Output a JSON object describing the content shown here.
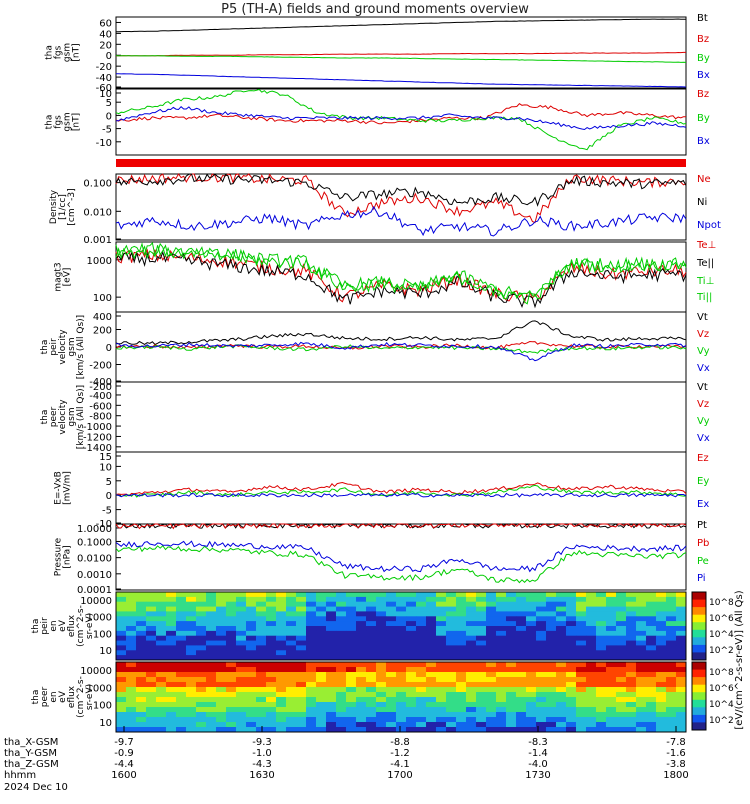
{
  "title": "P5 (TH-A) fields and ground moments overview",
  "footer": {
    "rows": [
      {
        "label": "tha_X-GSM",
        "values": [
          "-9.7",
          "-9.3",
          "-8.8",
          "-8.3",
          "-7.8"
        ]
      },
      {
        "label": "tha_Y-GSM",
        "values": [
          "-0.9",
          "-1.0",
          "-1.2",
          "-1.4",
          "-1.6"
        ]
      },
      {
        "label": "tha_Z-GSM",
        "values": [
          "-4.4",
          "-4.3",
          "-4.1",
          "-4.0",
          "-3.8"
        ]
      },
      {
        "label": "hhmm",
        "values": [
          "1600",
          "1630",
          "1700",
          "1730",
          "1800"
        ]
      }
    ],
    "date": "2024 Dec 10"
  },
  "colorbar": {
    "label": "[eV/(cm^2-s-sr-eV)] (All Qs)",
    "ticks_top": [
      "10^8",
      "10^6",
      "10^4",
      "10^2"
    ],
    "ticks_bottom": [
      "10^8",
      "10^6",
      "10^4",
      "10^2"
    ]
  },
  "chart_data": [
    {
      "id": "p1",
      "type": "line",
      "ylabel": [
        "tha",
        "fgs",
        "gsm",
        "[nT]"
      ],
      "ylim": [
        -60,
        70
      ],
      "yticks": [
        "60",
        "40",
        "20",
        "0",
        "-20",
        "-40",
        "-60"
      ],
      "series": [
        {
          "name": "Bt",
          "color": "#000000",
          "values": [
            43,
            44,
            46,
            48,
            50,
            52,
            54,
            56,
            58,
            60,
            62,
            63,
            64,
            65,
            66,
            66
          ]
        },
        {
          "name": "Bz",
          "color": "#dd0000",
          "values": [
            -1,
            -1,
            0,
            0,
            1,
            1,
            2,
            2,
            2,
            3,
            3,
            3,
            4,
            4,
            4,
            5
          ]
        },
        {
          "name": "By",
          "color": "#00cc00",
          "values": [
            -1,
            -1,
            -2,
            -2,
            -3,
            -4,
            -5,
            -5,
            -6,
            -7,
            -8,
            -9,
            -10,
            -11,
            -12,
            -13
          ]
        },
        {
          "name": "Bx",
          "color": "#0000dd",
          "values": [
            -34,
            -35,
            -37,
            -39,
            -41,
            -43,
            -45,
            -47,
            -49,
            -51,
            -53,
            -54,
            -55,
            -56,
            -57,
            -58
          ]
        }
      ]
    },
    {
      "id": "p2",
      "type": "line",
      "ylabel": [
        "tha",
        "fgs",
        "gsm",
        "[nT]"
      ],
      "ylim": [
        -15,
        10
      ],
      "yticks": [
        "10",
        "5",
        "0",
        "-5",
        "-10"
      ],
      "series": [
        {
          "name": "Bz",
          "color": "#dd0000",
          "values": [
            -2,
            -1,
            -1,
            0,
            -1,
            -2,
            -2,
            -2,
            -3,
            -2,
            -1,
            -1,
            4,
            3,
            0,
            1,
            0,
            -1
          ]
        },
        {
          "name": "By",
          "color": "#00cc00",
          "values": [
            1,
            3,
            6,
            7,
            10,
            8,
            1,
            -1,
            -1,
            -2,
            -2,
            -1,
            -1,
            -8,
            -13,
            -4,
            -1,
            -3
          ]
        },
        {
          "name": "Bx",
          "color": "#0000dd",
          "values": [
            -2,
            1,
            3,
            1,
            0,
            -1,
            -1,
            -1,
            -1,
            -1,
            0,
            -1,
            -1,
            -3,
            -5,
            -4,
            -3,
            -4
          ]
        }
      ]
    },
    {
      "id": "p3",
      "type": "line",
      "ylabel": [
        "Density",
        "[1/cc]",
        "[cm^-3]"
      ],
      "ylog": true,
      "ylim": [
        0.001,
        0.2
      ],
      "yticks": [
        "0.100",
        "0.010",
        "0.001"
      ],
      "series": [
        {
          "name": "Ne",
          "color": "#dd0000",
          "values": [
            0.12,
            0.14,
            0.16,
            0.15,
            0.13,
            0.12,
            0.008,
            0.02,
            0.03,
            0.01,
            0.02,
            0.005,
            0.15,
            0.12,
            0.1,
            0.12
          ]
        },
        {
          "name": "Ni",
          "color": "#000000",
          "values": [
            0.1,
            0.12,
            0.14,
            0.13,
            0.12,
            0.1,
            0.03,
            0.04,
            0.05,
            0.02,
            0.03,
            0.02,
            0.12,
            0.1,
            0.09,
            0.1
          ]
        },
        {
          "name": "Npot",
          "color": "#0000dd",
          "values": [
            0.003,
            0.005,
            0.003,
            0.004,
            0.006,
            0.003,
            0.008,
            0.01,
            0.002,
            0.003,
            0.002,
            0.005,
            0.003,
            0.004,
            0.006,
            0.006
          ]
        }
      ]
    },
    {
      "id": "p4",
      "type": "line",
      "ylabel": [
        "magt3",
        "[eV]"
      ],
      "ylog": true,
      "ylim": [
        40,
        3000
      ],
      "yticks": [
        "1000",
        "100"
      ],
      "series": [
        {
          "name": "Te⊥",
          "color": "#dd0000",
          "values": [
            1200,
            1300,
            1100,
            900,
            600,
            500,
            100,
            200,
            150,
            300,
            120,
            90,
            600,
            400,
            500,
            500
          ]
        },
        {
          "name": "Te||",
          "color": "#000000",
          "values": [
            1000,
            1100,
            900,
            700,
            500,
            400,
            80,
            150,
            120,
            250,
            100,
            70,
            500,
            350,
            400,
            400
          ]
        },
        {
          "name": "Ti⊥",
          "color": "#00cc00",
          "values": [
            1800,
            1900,
            1600,
            1400,
            1000,
            900,
            200,
            250,
            180,
            400,
            150,
            100,
            900,
            700,
            800,
            800
          ]
        },
        {
          "name": "Ti||",
          "color": "#00cc00",
          "values": [
            1600,
            1700,
            1500,
            1300,
            900,
            800,
            180,
            230,
            160,
            350,
            140,
            90,
            800,
            650,
            750,
            750
          ]
        }
      ]
    },
    {
      "id": "p5",
      "type": "line",
      "ylabel": [
        "tha",
        "peir",
        "velocity",
        "gsm",
        "[km/s (All Qs)]"
      ],
      "ylim": [
        -400,
        400
      ],
      "yticks": [
        "400",
        "200",
        "0",
        "-200",
        "-400"
      ],
      "series": [
        {
          "name": "Vt",
          "color": "#000000",
          "values": [
            50,
            40,
            60,
            80,
            120,
            150,
            100,
            90,
            110,
            80,
            100,
            300,
            120,
            80,
            100,
            90
          ]
        },
        {
          "name": "Vz",
          "color": "#dd0000",
          "values": [
            0,
            10,
            -10,
            20,
            0,
            10,
            -20,
            10,
            0,
            20,
            -10,
            50,
            10,
            0,
            10,
            0
          ]
        },
        {
          "name": "Vy",
          "color": "#00cc00",
          "values": [
            -10,
            0,
            -20,
            10,
            -10,
            -30,
            10,
            -20,
            0,
            -10,
            -20,
            -60,
            -10,
            -20,
            0,
            -10
          ]
        },
        {
          "name": "Vx",
          "color": "#0000dd",
          "values": [
            20,
            10,
            30,
            10,
            20,
            40,
            -10,
            30,
            20,
            10,
            0,
            -150,
            20,
            10,
            30,
            20
          ]
        }
      ]
    },
    {
      "id": "p6",
      "type": "line",
      "ylabel": [
        "tha",
        "peer",
        "velocity",
        "gsm",
        "[km/s (All Qs)]"
      ],
      "ylim": [
        -1500,
        -150
      ],
      "yticks": [
        "-200",
        "-400",
        "-600",
        "-800",
        "-1000",
        "-1200",
        "-1400"
      ],
      "series": [
        {
          "name": "Vt",
          "color": "#000000",
          "values": []
        },
        {
          "name": "Vz",
          "color": "#dd0000",
          "values": []
        },
        {
          "name": "Vy",
          "color": "#00cc00",
          "values": []
        },
        {
          "name": "Vx",
          "color": "#0000dd",
          "values": []
        }
      ]
    },
    {
      "id": "p7",
      "type": "line",
      "ylabel": [
        "E=-VxB",
        "[mV/m]"
      ],
      "ylim": [
        -10,
        15
      ],
      "yticks": [
        "15",
        "10",
        "5",
        "0",
        "-5",
        "-10"
      ],
      "series": [
        {
          "name": "Ez",
          "color": "#dd0000",
          "values": [
            0,
            1,
            2,
            1,
            3,
            2,
            4,
            1,
            2,
            1,
            2,
            4,
            2,
            3,
            2,
            1
          ]
        },
        {
          "name": "Ey",
          "color": "#00cc00",
          "values": [
            0,
            0,
            1,
            0,
            1,
            1,
            2,
            0,
            1,
            0,
            1,
            3,
            1,
            1,
            1,
            0
          ]
        },
        {
          "name": "Ex",
          "color": "#0000dd",
          "values": [
            0,
            0,
            0,
            0,
            0,
            0,
            0,
            0,
            0,
            0,
            0,
            0,
            0,
            0,
            0,
            0
          ]
        }
      ]
    },
    {
      "id": "p8",
      "type": "line",
      "ylabel": [
        "Pressure",
        "[nPa]"
      ],
      "ylog": true,
      "ylim": [
        0.0001,
        1.2
      ],
      "yticks": [
        "1.0000",
        "0.1000",
        "0.0100",
        "0.0010",
        "0.0001"
      ],
      "series": [
        {
          "name": "Pt",
          "color": "#000000",
          "values": [
            1,
            1,
            1,
            1,
            1,
            1,
            1,
            1,
            1,
            1,
            1,
            1,
            1,
            1,
            1,
            1
          ]
        },
        {
          "name": "Pb",
          "color": "#dd0000",
          "values": [
            0.9,
            0.9,
            0.95,
            1,
            1,
            1,
            1,
            1,
            1.05,
            1.05,
            1.1,
            1.1,
            1.1,
            1.15,
            1.15,
            1.2
          ]
        },
        {
          "name": "Pe",
          "color": "#00cc00",
          "values": [
            0.03,
            0.04,
            0.035,
            0.03,
            0.02,
            0.015,
            0.0008,
            0.0006,
            0.0006,
            0.002,
            0.0004,
            0.0004,
            0.02,
            0.015,
            0.012,
            0.015
          ]
        },
        {
          "name": "Pi",
          "color": "#0000dd",
          "values": [
            0.06,
            0.08,
            0.07,
            0.06,
            0.05,
            0.04,
            0.003,
            0.002,
            0.002,
            0.008,
            0.002,
            0.002,
            0.05,
            0.04,
            0.035,
            0.04
          ]
        }
      ]
    },
    {
      "id": "p9",
      "type": "heatmap",
      "ylabel": [
        "tha",
        "peir",
        "en",
        "eV",
        "eflux",
        "(cm^2-s-",
        "sr-eV)"
      ],
      "yticks": [
        "10000",
        "1000",
        "100",
        "10"
      ]
    },
    {
      "id": "p10",
      "type": "heatmap",
      "ylabel": [
        "tha",
        "peer",
        "en",
        "eV",
        "eflux",
        "(cm^2-s-",
        "sr-eV)"
      ],
      "yticks": [
        "10000",
        "1000",
        "100",
        "10"
      ]
    }
  ]
}
